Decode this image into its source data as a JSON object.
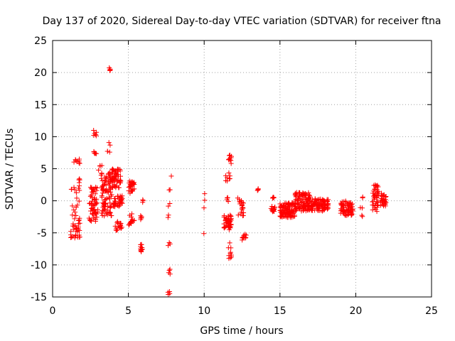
{
  "chart_data": {
    "type": "scatter",
    "title": "Day 137 of 2020, Sidereal Day-to-day VTEC variation (SDTVAR) for receiver ftna",
    "xlabel": "GPS time / hours",
    "ylabel": "SDTVAR / TECUs",
    "xlim": [
      0,
      25
    ],
    "ylim": [
      -15,
      25
    ],
    "xticks": [
      0,
      5,
      10,
      15,
      20,
      25
    ],
    "yticks": [
      -15,
      -10,
      -5,
      0,
      5,
      10,
      15,
      20,
      25
    ],
    "grid": true,
    "marker": "plus",
    "color": "#ff0000",
    "series": [
      {
        "name": "SDTVAR",
        "clusters": [
          {
            "x": [
              1.2,
              1.8
            ],
            "y": [
              -5.8,
              -3.5
            ],
            "n": 28
          },
          {
            "x": [
              1.2,
              1.8
            ],
            "y": [
              -3.5,
              0.5
            ],
            "n": 14
          },
          {
            "x": [
              1.2,
              1.8
            ],
            "y": [
              1.0,
              3.5
            ],
            "n": 12
          },
          {
            "x": [
              1.3,
              1.8
            ],
            "y": [
              5.8,
              6.6
            ],
            "n": 8
          },
          {
            "x": [
              2.4,
              3.0
            ],
            "y": [
              -3.2,
              2.2
            ],
            "n": 60
          },
          {
            "x": [
              2.7,
              2.9
            ],
            "y": [
              10.1,
              11.0
            ],
            "n": 6
          },
          {
            "x": [
              2.7,
              2.9
            ],
            "y": [
              7.2,
              8.0
            ],
            "n": 6
          },
          {
            "x": [
              3.0,
              3.3
            ],
            "y": [
              4.5,
              5.6
            ],
            "n": 4
          },
          {
            "x": [
              3.2,
              3.9
            ],
            "y": [
              -2.5,
              4.5
            ],
            "n": 90
          },
          {
            "x": [
              3.7,
              3.9
            ],
            "y": [
              20.3,
              20.8
            ],
            "n": 5
          },
          {
            "x": [
              3.6,
              3.8
            ],
            "y": [
              7.4,
              9.2
            ],
            "n": 5
          },
          {
            "x": [
              3.9,
              4.5
            ],
            "y": [
              2.0,
              5.0
            ],
            "n": 60
          },
          {
            "x": [
              4.0,
              4.6
            ],
            "y": [
              -1.0,
              1.0
            ],
            "n": 40
          },
          {
            "x": [
              4.1,
              4.6
            ],
            "y": [
              -4.8,
              -3.2
            ],
            "n": 18
          },
          {
            "x": [
              5.0,
              5.4
            ],
            "y": [
              1.0,
              3.3
            ],
            "n": 28
          },
          {
            "x": [
              5.0,
              5.4
            ],
            "y": [
              -4.0,
              -2.0
            ],
            "n": 16
          },
          {
            "x": [
              5.8,
              5.95
            ],
            "y": [
              -8.3,
              -6.8
            ],
            "n": 12
          },
          {
            "x": [
              5.8,
              6.0
            ],
            "y": [
              -3.0,
              -2.2
            ],
            "n": 6
          },
          {
            "x": [
              5.9,
              6.0
            ],
            "y": [
              -0.4,
              0.4
            ],
            "n": 3
          },
          {
            "x": [
              7.6,
              7.8
            ],
            "y": [
              -15.0,
              -13.8
            ],
            "n": 4
          },
          {
            "x": [
              7.6,
              7.8
            ],
            "y": [
              -11.5,
              -10.5
            ],
            "n": 4
          },
          {
            "x": [
              7.6,
              7.8
            ],
            "y": [
              -7.0,
              -6.4
            ],
            "n": 3
          },
          {
            "x": [
              7.6,
              7.8
            ],
            "y": [
              -2.6,
              -2.2
            ],
            "n": 2
          },
          {
            "x": [
              7.6,
              7.8
            ],
            "y": [
              -0.9,
              -0.4
            ],
            "n": 2
          },
          {
            "x": [
              7.6,
              7.8
            ],
            "y": [
              1.0,
              1.8
            ],
            "n": 2
          },
          {
            "x": [
              7.8,
              7.9
            ],
            "y": [
              3.8,
              4.0
            ],
            "n": 1
          },
          {
            "x": [
              9.95,
              10.05
            ],
            "y": [
              -5.2,
              -5.0
            ],
            "n": 1
          },
          {
            "x": [
              9.95,
              10.05
            ],
            "y": [
              -1.2,
              -0.8
            ],
            "n": 1
          },
          {
            "x": [
              9.95,
              10.05
            ],
            "y": [
              0.0,
              0.2
            ],
            "n": 1
          },
          {
            "x": [
              9.95,
              10.05
            ],
            "y": [
              1.0,
              1.3
            ],
            "n": 1
          },
          {
            "x": [
              11.3,
              11.8
            ],
            "y": [
              -4.5,
              -2.2
            ],
            "n": 45
          },
          {
            "x": [
              11.4,
              11.7
            ],
            "y": [
              3.0,
              4.5
            ],
            "n": 8
          },
          {
            "x": [
              11.6,
              11.8
            ],
            "y": [
              5.8,
              7.3
            ],
            "n": 10
          },
          {
            "x": [
              11.6,
              11.8
            ],
            "y": [
              -9.5,
              -6.0
            ],
            "n": 10
          },
          {
            "x": [
              11.4,
              11.6
            ],
            "y": [
              -0.5,
              0.5
            ],
            "n": 4
          },
          {
            "x": [
              12.2,
              12.6
            ],
            "y": [
              -3.0,
              0.5
            ],
            "n": 20
          },
          {
            "x": [
              12.5,
              12.8
            ],
            "y": [
              -6.3,
              -5.2
            ],
            "n": 10
          },
          {
            "x": [
              13.5,
              13.7
            ],
            "y": [
              1.6,
              2.0
            ],
            "n": 4
          },
          {
            "x": [
              14.4,
              14.7
            ],
            "y": [
              -1.8,
              -0.8
            ],
            "n": 14
          },
          {
            "x": [
              14.4,
              14.7
            ],
            "y": [
              0.2,
              0.7
            ],
            "n": 4
          },
          {
            "x": [
              15.0,
              16.0
            ],
            "y": [
              -2.6,
              -0.3
            ],
            "n": 110
          },
          {
            "x": [
              16.0,
              17.0
            ],
            "y": [
              -1.6,
              1.3
            ],
            "n": 110
          },
          {
            "x": [
              17.0,
              18.2
            ],
            "y": [
              -1.6,
              0.3
            ],
            "n": 90
          },
          {
            "x": [
              19.0,
              19.8
            ],
            "y": [
              -2.3,
              0.0
            ],
            "n": 70
          },
          {
            "x": [
              20.3,
              20.5
            ],
            "y": [
              -2.6,
              -2.2
            ],
            "n": 2
          },
          {
            "x": [
              20.3,
              20.5
            ],
            "y": [
              -1.2,
              -0.9
            ],
            "n": 2
          },
          {
            "x": [
              20.3,
              20.5
            ],
            "y": [
              0.3,
              0.6
            ],
            "n": 2
          },
          {
            "x": [
              21.1,
              21.5
            ],
            "y": [
              -1.7,
              2.6
            ],
            "n": 45
          },
          {
            "x": [
              21.6,
              22.0
            ],
            "y": [
              -0.9,
              1.2
            ],
            "n": 30
          }
        ]
      }
    ]
  }
}
